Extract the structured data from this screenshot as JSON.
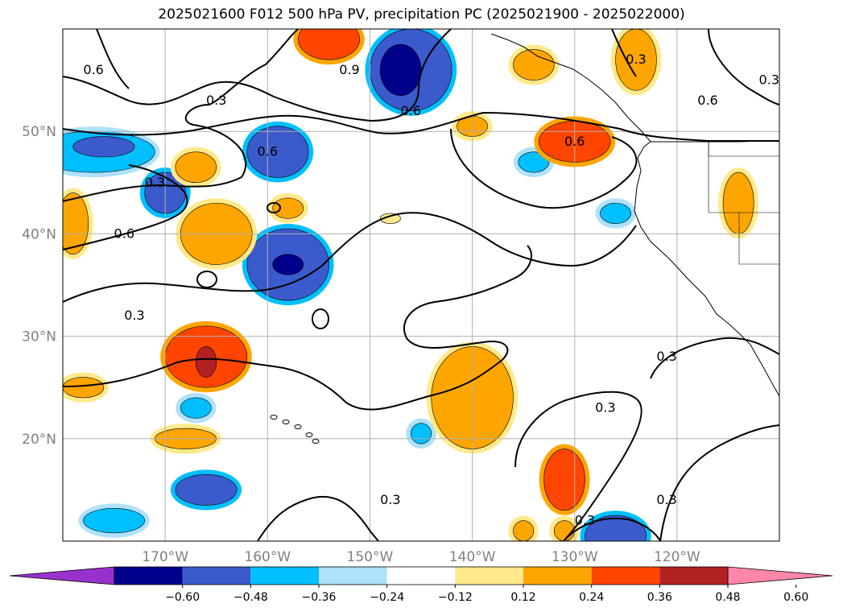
{
  "chart_data": {
    "type": "heatmap",
    "title": "2025021600 F012 500 hPa PV, precipitation PC (2025021900 - 2025022000)",
    "projection": "plate-carree",
    "lon_range": [
      -180,
      -110
    ],
    "lat_range": [
      10,
      60
    ],
    "x_ticks": [
      {
        "lon": -170,
        "label": "170°W"
      },
      {
        "lon": -160,
        "label": "160°W"
      },
      {
        "lon": -150,
        "label": "150°W"
      },
      {
        "lon": -140,
        "label": "140°W"
      },
      {
        "lon": -130,
        "label": "130°W"
      },
      {
        "lon": -120,
        "label": "120°W"
      }
    ],
    "y_ticks": [
      {
        "lat": 20,
        "label": "20°N"
      },
      {
        "lat": 30,
        "label": "30°N"
      },
      {
        "lat": 40,
        "label": "40°N"
      },
      {
        "lat": 50,
        "label": "50°N"
      }
    ],
    "grid": true,
    "colorbar": {
      "orientation": "horizontal",
      "position": "bottom",
      "extend": "both",
      "boundaries": [
        -0.6,
        -0.48,
        -0.36,
        -0.24,
        -0.12,
        0.12,
        0.24,
        0.36,
        0.48,
        0.6
      ],
      "tick_labels": [
        "−0.60",
        "−0.48",
        "−0.36",
        "−0.24",
        "−0.12",
        "0.12",
        "0.24",
        "0.36",
        "0.48",
        "0.60"
      ],
      "colors": [
        "#9932cc",
        "#00008b",
        "#3b5bcc",
        "#00bfff",
        "#ade2fa",
        "#ffffff",
        "#ffe98a",
        "#ffa500",
        "#ff4500",
        "#b22222",
        "#ff88aa"
      ]
    },
    "pv_contour_levels": [
      0.3,
      0.6,
      0.9
    ],
    "pv_contour_labels": [
      {
        "text": "0.6",
        "lon": -177,
        "lat": 56
      },
      {
        "text": "0.9",
        "lon": -152,
        "lat": 56
      },
      {
        "text": "0.3",
        "lon": -165,
        "lat": 53
      },
      {
        "text": "0.6",
        "lon": -146,
        "lat": 52
      },
      {
        "text": "0.3",
        "lon": -124,
        "lat": 57
      },
      {
        "text": "0.3",
        "lon": -111,
        "lat": 55
      },
      {
        "text": "0.6",
        "lon": -117,
        "lat": 53
      },
      {
        "text": "0.6",
        "lon": -130,
        "lat": 49
      },
      {
        "text": "0.6",
        "lon": -160,
        "lat": 48
      },
      {
        "text": "0.3",
        "lon": -171,
        "lat": 45
      },
      {
        "text": "0.6",
        "lon": -174,
        "lat": 40
      },
      {
        "text": "0.3",
        "lon": -173,
        "lat": 32
      },
      {
        "text": "0.3",
        "lon": -127,
        "lat": 23
      },
      {
        "text": "0.3",
        "lon": -121,
        "lat": 28
      },
      {
        "text": "0.3",
        "lon": -148,
        "lat": 14
      },
      {
        "text": "0.3",
        "lon": -121,
        "lat": 14
      },
      {
        "text": "0.3",
        "lon": -129,
        "lat": 12
      }
    ],
    "precip_pc_anomalies": [
      {
        "lon": -177,
        "lat": 48,
        "rx": 6,
        "ry": 2,
        "level": -0.3
      },
      {
        "lon": -176,
        "lat": 48.5,
        "rx": 3,
        "ry": 1,
        "level": -0.4
      },
      {
        "lon": -170,
        "lat": 44,
        "rx": 2,
        "ry": 2,
        "level": -0.4
      },
      {
        "lon": -159,
        "lat": 48,
        "rx": 3,
        "ry": 2.5,
        "level": -0.4
      },
      {
        "lon": -158,
        "lat": 37,
        "rx": 4,
        "ry": 3.5,
        "level": -0.4
      },
      {
        "lon": -158,
        "lat": 37,
        "rx": 1.5,
        "ry": 1,
        "level": -0.55
      },
      {
        "lon": -146,
        "lat": 56,
        "rx": 4,
        "ry": 4,
        "level": -0.4
      },
      {
        "lon": -147,
        "lat": 56,
        "rx": 2,
        "ry": 2.5,
        "level": -0.55
      },
      {
        "lon": -134,
        "lat": 47,
        "rx": 1.5,
        "ry": 1,
        "level": -0.3
      },
      {
        "lon": -126,
        "lat": 42,
        "rx": 1.5,
        "ry": 1,
        "level": -0.3
      },
      {
        "lon": -166,
        "lat": 15,
        "rx": 3,
        "ry": 1.5,
        "level": -0.4
      },
      {
        "lon": -167,
        "lat": 23,
        "rx": 1.5,
        "ry": 1,
        "level": -0.3
      },
      {
        "lon": -175,
        "lat": 12,
        "rx": 3,
        "ry": 1.2,
        "level": -0.3
      },
      {
        "lon": -126,
        "lat": 10.5,
        "rx": 3,
        "ry": 2,
        "level": -0.4
      },
      {
        "lon": -145,
        "lat": 20.5,
        "rx": 1,
        "ry": 1,
        "level": -0.3
      },
      {
        "lon": -166,
        "lat": 28,
        "rx": 4,
        "ry": 3,
        "level": 0.4
      },
      {
        "lon": -166,
        "lat": 27.5,
        "rx": 1,
        "ry": 1.5,
        "level": 0.52
      },
      {
        "lon": -165,
        "lat": 40,
        "rx": 3.5,
        "ry": 3,
        "level": 0.3
      },
      {
        "lon": -167,
        "lat": 46.5,
        "rx": 2,
        "ry": 1.5,
        "level": 0.3
      },
      {
        "lon": -179,
        "lat": 41,
        "rx": 1.5,
        "ry": 3,
        "level": 0.3
      },
      {
        "lon": -178,
        "lat": 25,
        "rx": 2,
        "ry": 1,
        "level": 0.3
      },
      {
        "lon": -168,
        "lat": 20,
        "rx": 3,
        "ry": 1,
        "level": 0.3
      },
      {
        "lon": -140,
        "lat": 24,
        "rx": 4,
        "ry": 5,
        "level": 0.3
      },
      {
        "lon": -131,
        "lat": 16,
        "rx": 2,
        "ry": 3,
        "level": 0.4
      },
      {
        "lon": -130,
        "lat": 49,
        "rx": 3.5,
        "ry": 2,
        "level": 0.4
      },
      {
        "lon": -154,
        "lat": 59,
        "rx": 3,
        "ry": 2,
        "level": 0.4
      },
      {
        "lon": -124,
        "lat": 57,
        "rx": 2,
        "ry": 3,
        "level": 0.3
      },
      {
        "lon": -134,
        "lat": 56.5,
        "rx": 2,
        "ry": 1.5,
        "level": 0.3
      },
      {
        "lon": -140,
        "lat": 50.5,
        "rx": 1.5,
        "ry": 1,
        "level": 0.3
      },
      {
        "lon": -114,
        "lat": 43,
        "rx": 1.5,
        "ry": 3,
        "level": 0.3
      },
      {
        "lon": -135,
        "lat": 11,
        "rx": 1,
        "ry": 1,
        "level": 0.3
      },
      {
        "lon": -131,
        "lat": 11,
        "rx": 1,
        "ry": 1,
        "level": 0.3
      },
      {
        "lon": -148,
        "lat": 41.5,
        "rx": 1,
        "ry": 0.5,
        "level": 0.15
      },
      {
        "lon": -158,
        "lat": 42.5,
        "rx": 1.5,
        "ry": 1,
        "level": 0.25
      }
    ]
  },
  "colors": {
    "grid": "#b0b0b0",
    "coast": "#000000",
    "contour": "#000000",
    "tick_label": "#808080"
  }
}
